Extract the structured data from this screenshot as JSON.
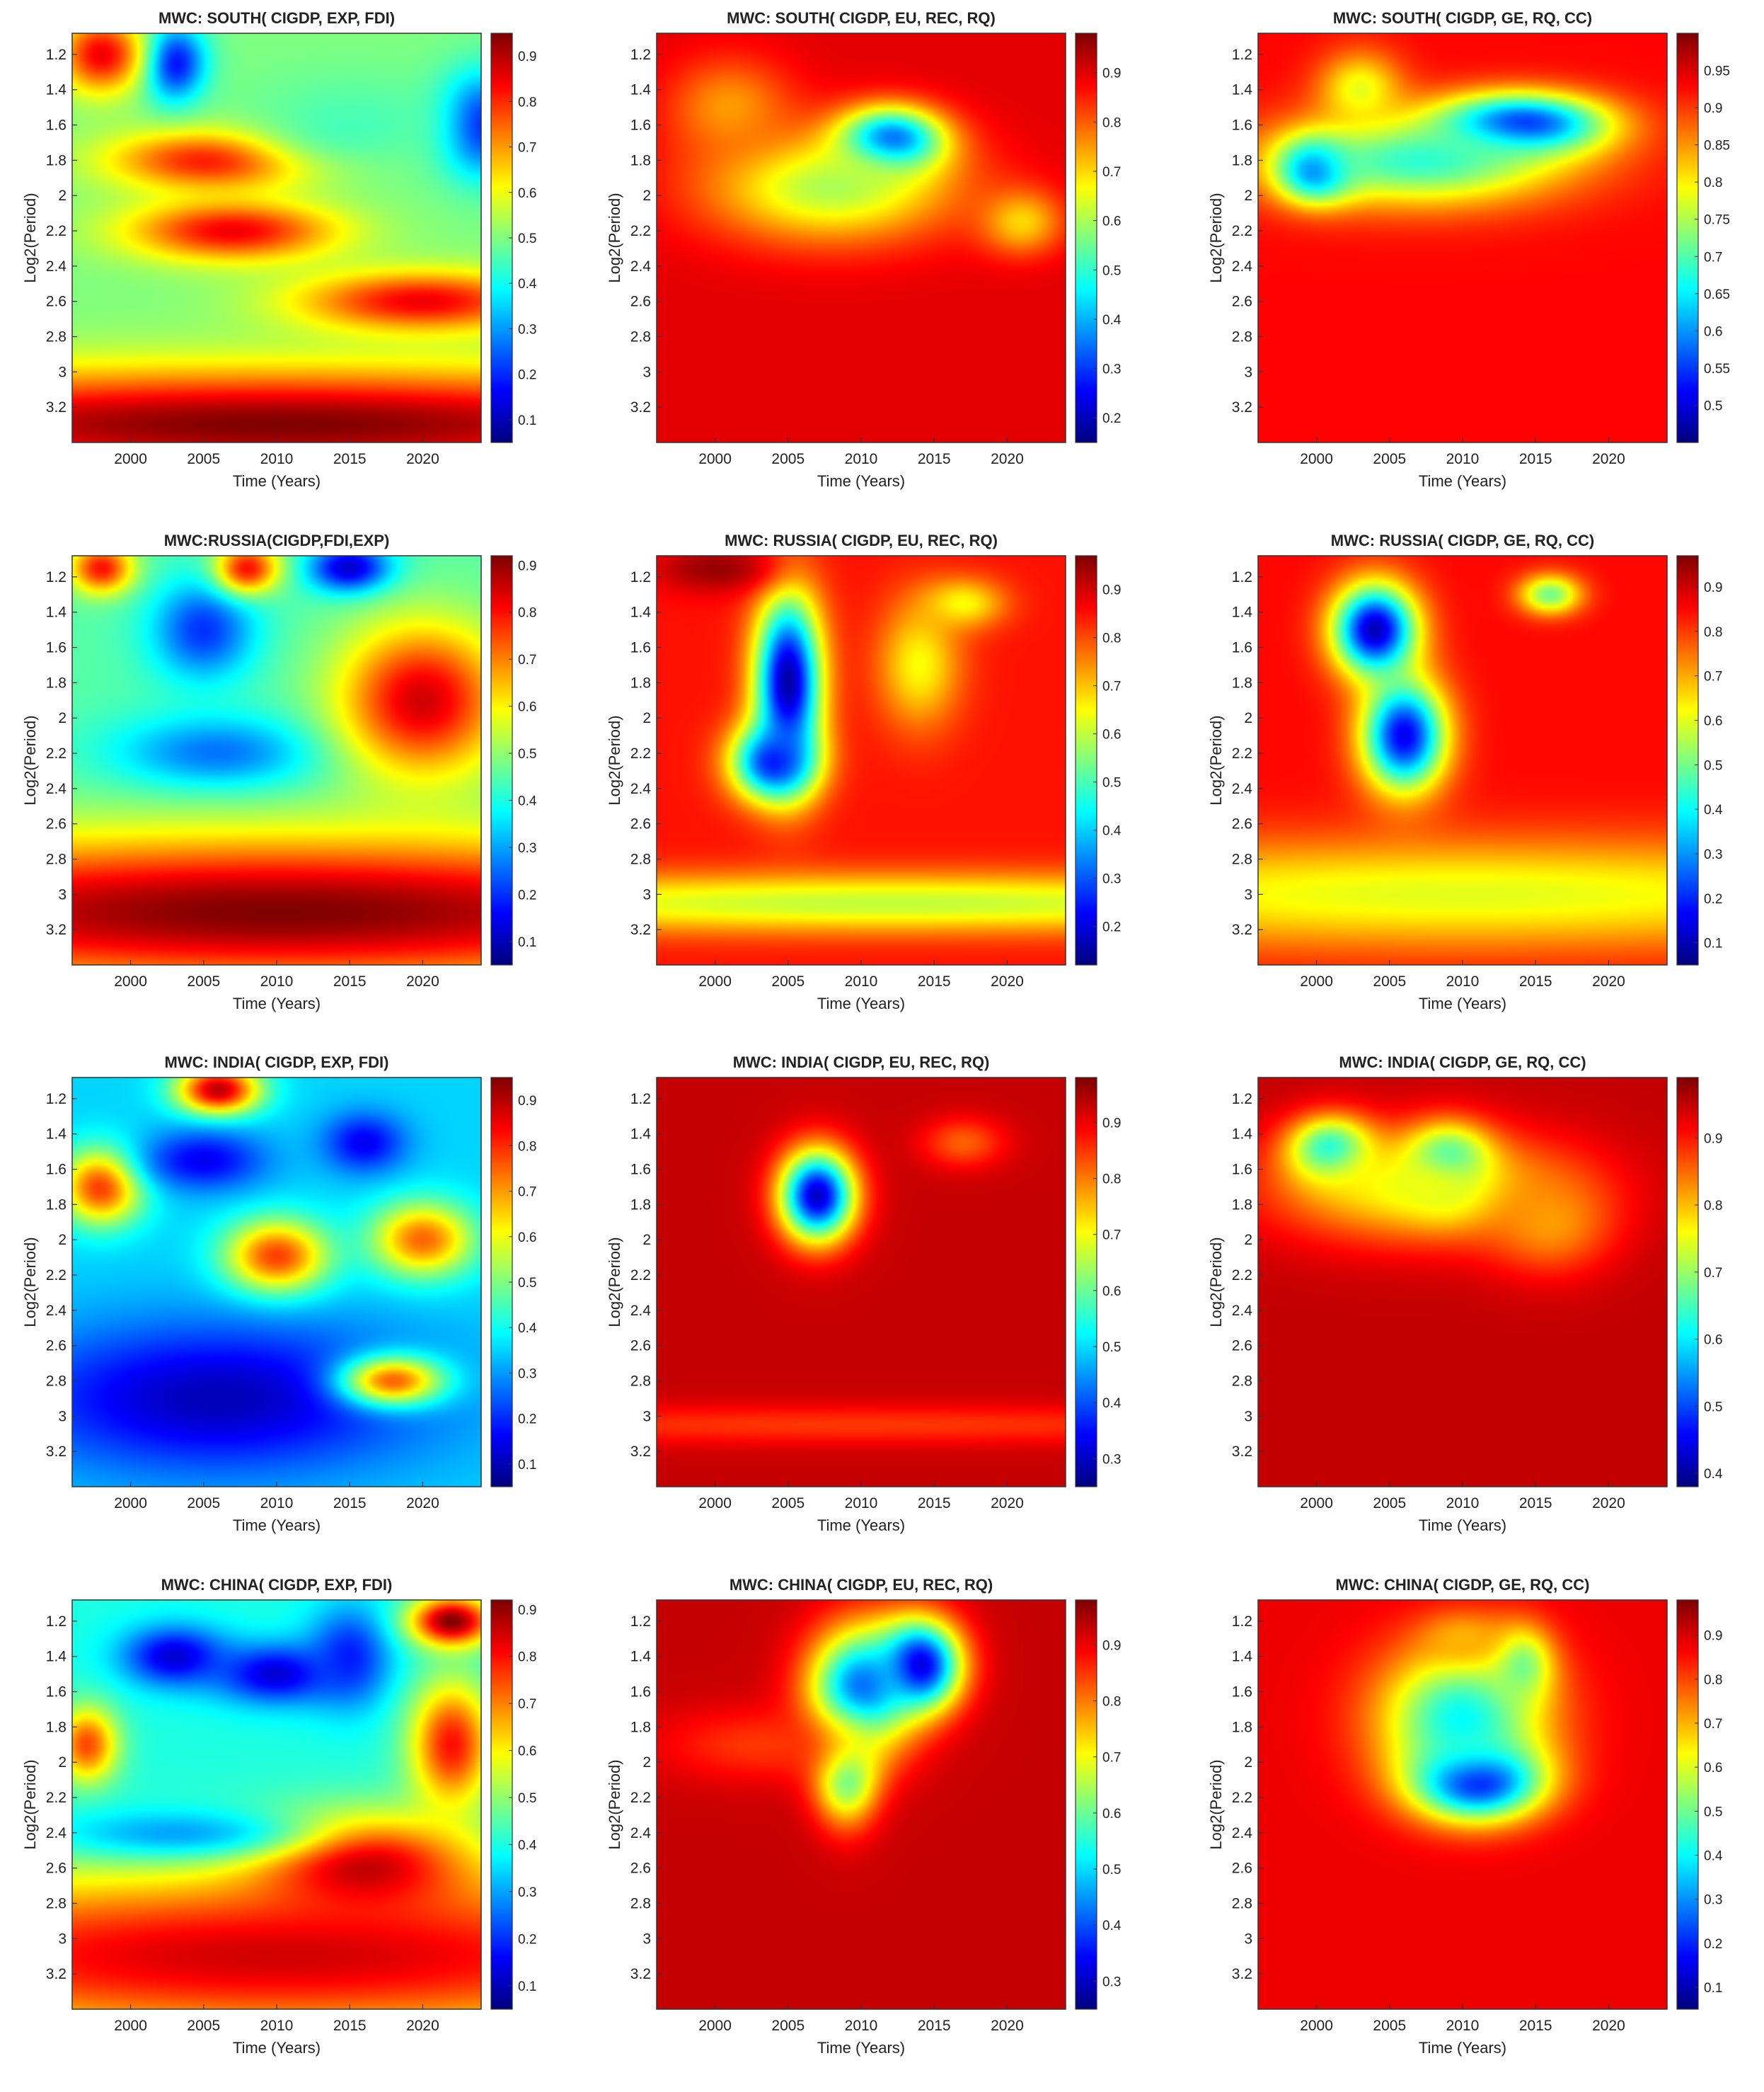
{
  "chart_data": [
    {
      "type": "heatmap",
      "title": "MWC: SOUTH( CIGDP, EXP,  FDI)",
      "xlabel": "Time (Years)",
      "ylabel": "Log2(Period)",
      "xticks": [
        "2000",
        "2005",
        "2010",
        "2015",
        "2020"
      ],
      "yticks": [
        "1.2",
        "1.4",
        "1.6",
        "1.8",
        "2",
        "2.2",
        "2.4",
        "2.6",
        "2.8",
        "3",
        "3.2"
      ],
      "colorbar_ticks": [
        "0.1",
        "0.2",
        "0.3",
        "0.4",
        "0.5",
        "0.6",
        "0.7",
        "0.8",
        "0.9"
      ],
      "xlim": [
        1996,
        2024
      ],
      "ylim": [
        1.08,
        3.4
      ],
      "clim": [
        0.05,
        0.95
      ],
      "base": 0.5,
      "features": [
        {
          "x": 2006,
          "y": 1.8,
          "v": 0.85,
          "sx": 5,
          "sy": 0.12
        },
        {
          "x": 2007,
          "y": 2.2,
          "v": 0.85,
          "sx": 5,
          "sy": 0.12
        },
        {
          "x": 2020,
          "y": 2.6,
          "v": 0.85,
          "sx": 6,
          "sy": 0.12
        },
        {
          "x": 2003,
          "y": 1.25,
          "v": 0.15,
          "sx": 1.5,
          "sy": 0.15
        },
        {
          "x": 2024,
          "y": 1.6,
          "v": 0.15,
          "sx": 2,
          "sy": 0.2
        },
        {
          "x": 2015,
          "y": 1.6,
          "v": 0.45,
          "sx": 5,
          "sy": 0.2
        },
        {
          "x": 2010,
          "y": 3.3,
          "v": 0.95,
          "sx": 30,
          "sy": 0.22
        },
        {
          "x": 1998,
          "y": 1.2,
          "v": 0.85,
          "sx": 2,
          "sy": 0.15
        }
      ]
    },
    {
      "type": "heatmap",
      "title": "MWC:  SOUTH( CIGDP, EU, REC, RQ)",
      "xlabel": "Time (Years)",
      "ylabel": "Log2(Period)",
      "xticks": [
        "2000",
        "2005",
        "2010",
        "2015",
        "2020"
      ],
      "yticks": [
        "1.2",
        "1.4",
        "1.6",
        "1.8",
        "2",
        "2.2",
        "2.4",
        "2.6",
        "2.8",
        "3",
        "3.2"
      ],
      "colorbar_ticks": [
        "0.2",
        "0.3",
        "0.4",
        "0.5",
        "0.6",
        "0.7",
        "0.8",
        "0.9"
      ],
      "xlim": [
        1996,
        2024
      ],
      "ylim": [
        1.08,
        3.4
      ],
      "clim": [
        0.15,
        0.98
      ],
      "base": 0.9,
      "features": [
        {
          "x": 2012,
          "y": 1.7,
          "v": 0.2,
          "sx": 2.5,
          "sy": 0.13
        },
        {
          "x": 2008,
          "y": 1.95,
          "v": 0.6,
          "sx": 6,
          "sy": 0.22
        },
        {
          "x": 2021,
          "y": 2.15,
          "v": 0.7,
          "sx": 2,
          "sy": 0.13
        },
        {
          "x": 2001,
          "y": 1.5,
          "v": 0.75,
          "sx": 3,
          "sy": 0.2
        }
      ]
    },
    {
      "type": "heatmap",
      "title": "MWC:  SOUTH( CIGDP, GE,  RQ, CC)",
      "xlabel": "Time (Years)",
      "ylabel": "Log2(Period)",
      "xticks": [
        "2000",
        "2005",
        "2010",
        "2015",
        "2020"
      ],
      "yticks": [
        "1.2",
        "1.4",
        "1.6",
        "1.8",
        "2",
        "2.2",
        "2.4",
        "2.6",
        "2.8",
        "3",
        "3.2"
      ],
      "colorbar_ticks": [
        "0.5",
        "0.55",
        "0.6",
        "0.65",
        "0.7",
        "0.75",
        "0.8",
        "0.85",
        "0.9",
        "0.95"
      ],
      "xlim": [
        1996,
        2024
      ],
      "ylim": [
        1.08,
        3.4
      ],
      "clim": [
        0.45,
        1.0
      ],
      "base": 0.93,
      "features": [
        {
          "x": 2014,
          "y": 1.6,
          "v": 0.5,
          "sx": 4,
          "sy": 0.12
        },
        {
          "x": 2000,
          "y": 1.85,
          "v": 0.5,
          "sx": 1.8,
          "sy": 0.12
        },
        {
          "x": 2007,
          "y": 1.8,
          "v": 0.68,
          "sx": 7,
          "sy": 0.18
        },
        {
          "x": 2003,
          "y": 1.4,
          "v": 0.78,
          "sx": 2,
          "sy": 0.15
        }
      ]
    },
    {
      "type": "heatmap",
      "title": "MWC:RUSSIA(CIGDP,FDI,EXP)",
      "xlabel": "Time (Years)",
      "ylabel": "Log2(Period)",
      "xticks": [
        "2000",
        "2005",
        "2010",
        "2015",
        "2020"
      ],
      "yticks": [
        "1.2",
        "1.4",
        "1.6",
        "1.8",
        "2",
        "2.2",
        "2.4",
        "2.6",
        "2.8",
        "3",
        "3.2"
      ],
      "colorbar_ticks": [
        "0.1",
        "0.2",
        "0.3",
        "0.4",
        "0.5",
        "0.6",
        "0.7",
        "0.8",
        "0.9"
      ],
      "xlim": [
        1996,
        2024
      ],
      "ylim": [
        1.08,
        3.4
      ],
      "clim": [
        0.05,
        0.92
      ],
      "base": 0.45,
      "features": [
        {
          "x": 2005,
          "y": 1.5,
          "v": 0.2,
          "sx": 2.5,
          "sy": 0.2
        },
        {
          "x": 2006,
          "y": 2.2,
          "v": 0.25,
          "sx": 5,
          "sy": 0.15
        },
        {
          "x": 2015,
          "y": 1.15,
          "v": 0.1,
          "sx": 2,
          "sy": 0.1
        },
        {
          "x": 2020,
          "y": 1.9,
          "v": 0.85,
          "sx": 4,
          "sy": 0.3
        },
        {
          "x": 2010,
          "y": 3.1,
          "v": 0.92,
          "sx": 30,
          "sy": 0.3
        },
        {
          "x": 1998,
          "y": 1.15,
          "v": 0.8,
          "sx": 1.5,
          "sy": 0.1
        },
        {
          "x": 2008,
          "y": 1.15,
          "v": 0.8,
          "sx": 1.5,
          "sy": 0.1
        }
      ]
    },
    {
      "type": "heatmap",
      "title": "MWC:  RUSSIA( CIGDP, EU, REC, RQ)",
      "xlabel": "Time (Years)",
      "ylabel": "Log2(Period)",
      "xticks": [
        "2000",
        "2005",
        "2010",
        "2015",
        "2020"
      ],
      "yticks": [
        "1.2",
        "1.4",
        "1.6",
        "1.8",
        "2",
        "2.2",
        "2.4",
        "2.6",
        "2.8",
        "3",
        "3.2"
      ],
      "colorbar_ticks": [
        "0.2",
        "0.3",
        "0.4",
        "0.5",
        "0.6",
        "0.7",
        "0.8",
        "0.9"
      ],
      "xlim": [
        1996,
        2024
      ],
      "ylim": [
        1.08,
        3.4
      ],
      "clim": [
        0.12,
        0.97
      ],
      "base": 0.85,
      "features": [
        {
          "x": 2005,
          "y": 1.8,
          "v": 0.15,
          "sx": 1.6,
          "sy": 0.35
        },
        {
          "x": 2004,
          "y": 2.25,
          "v": 0.25,
          "sx": 2,
          "sy": 0.15
        },
        {
          "x": 2012,
          "y": 3.05,
          "v": 0.6,
          "sx": 30,
          "sy": 0.12
        },
        {
          "x": 2014,
          "y": 1.7,
          "v": 0.65,
          "sx": 2,
          "sy": 0.25
        },
        {
          "x": 2017,
          "y": 1.35,
          "v": 0.65,
          "sx": 2,
          "sy": 0.1
        },
        {
          "x": 2000,
          "y": 1.15,
          "v": 0.95,
          "sx": 3,
          "sy": 0.1
        }
      ]
    },
    {
      "type": "heatmap",
      "title": "MWC:  RUSSIA( CIGDP, GE,  RQ, CC)",
      "xlabel": "Time (Years)",
      "ylabel": "Log2(Period)",
      "xticks": [
        "2000",
        "2005",
        "2010",
        "2015",
        "2020"
      ],
      "yticks": [
        "1.2",
        "1.4",
        "1.6",
        "1.8",
        "2",
        "2.2",
        "2.4",
        "2.6",
        "2.8",
        "3",
        "3.2"
      ],
      "colorbar_ticks": [
        "0.1",
        "0.2",
        "0.3",
        "0.4",
        "0.5",
        "0.6",
        "0.7",
        "0.8",
        "0.9"
      ],
      "xlim": [
        1996,
        2024
      ],
      "ylim": [
        1.08,
        3.4
      ],
      "clim": [
        0.05,
        0.97
      ],
      "base": 0.85,
      "features": [
        {
          "x": 2004,
          "y": 1.5,
          "v": 0.1,
          "sx": 2,
          "sy": 0.18
        },
        {
          "x": 2006,
          "y": 2.1,
          "v": 0.15,
          "sx": 2,
          "sy": 0.22
        },
        {
          "x": 2016,
          "y": 1.3,
          "v": 0.5,
          "sx": 1.5,
          "sy": 0.08
        },
        {
          "x": 2010,
          "y": 3.0,
          "v": 0.6,
          "sx": 30,
          "sy": 0.22
        }
      ]
    },
    {
      "type": "heatmap",
      "title": "MWC: INDIA( CIGDP, EXP,  FDI)",
      "xlabel": "Time (Years)",
      "ylabel": "Log2(Period)",
      "xticks": [
        "2000",
        "2005",
        "2010",
        "2015",
        "2020"
      ],
      "yticks": [
        "1.2",
        "1.4",
        "1.6",
        "1.8",
        "2",
        "2.2",
        "2.4",
        "2.6",
        "2.8",
        "3",
        "3.2"
      ],
      "colorbar_ticks": [
        "0.1",
        "0.2",
        "0.3",
        "0.4",
        "0.5",
        "0.6",
        "0.7",
        "0.8",
        "0.9"
      ],
      "xlim": [
        1996,
        2024
      ],
      "ylim": [
        1.08,
        3.4
      ],
      "clim": [
        0.05,
        0.95
      ],
      "base": 0.35,
      "features": [
        {
          "x": 2006,
          "y": 1.15,
          "v": 0.9,
          "sx": 2,
          "sy": 0.1
        },
        {
          "x": 1998,
          "y": 1.7,
          "v": 0.8,
          "sx": 2,
          "sy": 0.15
        },
        {
          "x": 2010,
          "y": 2.1,
          "v": 0.8,
          "sx": 2.5,
          "sy": 0.15
        },
        {
          "x": 2020,
          "y": 2.0,
          "v": 0.75,
          "sx": 2.5,
          "sy": 0.15
        },
        {
          "x": 2005,
          "y": 1.55,
          "v": 0.15,
          "sx": 3,
          "sy": 0.12
        },
        {
          "x": 2016,
          "y": 1.45,
          "v": 0.15,
          "sx": 2,
          "sy": 0.12
        },
        {
          "x": 2006,
          "y": 2.9,
          "v": 0.1,
          "sx": 10,
          "sy": 0.3
        },
        {
          "x": 2018,
          "y": 2.8,
          "v": 0.75,
          "sx": 2.5,
          "sy": 0.1
        }
      ]
    },
    {
      "type": "heatmap",
      "title": "MWC:  INDIA( CIGDP, EU, REC, RQ)",
      "xlabel": "Time (Years)",
      "ylabel": "Log2(Period)",
      "xticks": [
        "2000",
        "2005",
        "2010",
        "2015",
        "2020"
      ],
      "yticks": [
        "1.2",
        "1.4",
        "1.6",
        "1.8",
        "2",
        "2.2",
        "2.4",
        "2.6",
        "2.8",
        "3",
        "3.2"
      ],
      "colorbar_ticks": [
        "0.3",
        "0.4",
        "0.5",
        "0.6",
        "0.7",
        "0.8",
        "0.9"
      ],
      "xlim": [
        1996,
        2024
      ],
      "ylim": [
        1.08,
        3.4
      ],
      "clim": [
        0.25,
        0.98
      ],
      "base": 0.93,
      "features": [
        {
          "x": 2007,
          "y": 1.75,
          "v": 0.3,
          "sx": 1.8,
          "sy": 0.18
        },
        {
          "x": 2017,
          "y": 1.45,
          "v": 0.82,
          "sx": 2,
          "sy": 0.1
        },
        {
          "x": 2010,
          "y": 3.05,
          "v": 0.85,
          "sx": 30,
          "sy": 0.08
        }
      ]
    },
    {
      "type": "heatmap",
      "title": "MWC:  INDIA( CIGDP, GE,  RQ, CC)",
      "xlabel": "Time (Years)",
      "ylabel": "Log2(Period)",
      "xticks": [
        "2000",
        "2005",
        "2010",
        "2015",
        "2020"
      ],
      "yticks": [
        "1.2",
        "1.4",
        "1.6",
        "1.8",
        "2",
        "2.2",
        "2.4",
        "2.6",
        "2.8",
        "3",
        "3.2"
      ],
      "colorbar_ticks": [
        "0.4",
        "0.5",
        "0.6",
        "0.7",
        "0.8",
        "0.9"
      ],
      "xlim": [
        1996,
        2024
      ],
      "ylim": [
        1.08,
        3.4
      ],
      "clim": [
        0.38,
        0.99
      ],
      "base": 0.95,
      "features": [
        {
          "x": 2009,
          "y": 1.6,
          "v": 0.42,
          "sx": 2,
          "sy": 0.15
        },
        {
          "x": 2001,
          "y": 1.5,
          "v": 0.55,
          "sx": 2,
          "sy": 0.13
        },
        {
          "x": 2007,
          "y": 1.7,
          "v": 0.75,
          "sx": 7,
          "sy": 0.22
        },
        {
          "x": 2016,
          "y": 1.9,
          "v": 0.82,
          "sx": 3,
          "sy": 0.2
        }
      ]
    },
    {
      "type": "heatmap",
      "title": "MWC: CHINA( CIGDP, EXP,  FDI)",
      "xlabel": "Time (Years)",
      "ylabel": "Log2(Period)",
      "xticks": [
        "2000",
        "2005",
        "2010",
        "2015",
        "2020"
      ],
      "yticks": [
        "1.2",
        "1.4",
        "1.6",
        "1.8",
        "2",
        "2.2",
        "2.4",
        "2.6",
        "2.8",
        "3",
        "3.2"
      ],
      "colorbar_ticks": [
        "0.1",
        "0.2",
        "0.3",
        "0.4",
        "0.5",
        "0.6",
        "0.7",
        "0.8",
        "0.9"
      ],
      "xlim": [
        1996,
        2024
      ],
      "ylim": [
        1.08,
        3.4
      ],
      "clim": [
        0.05,
        0.92
      ],
      "base": 0.4,
      "features": [
        {
          "x": 2003,
          "y": 1.4,
          "v": 0.12,
          "sx": 2.5,
          "sy": 0.12
        },
        {
          "x": 2010,
          "y": 1.5,
          "v": 0.12,
          "sx": 3,
          "sy": 0.12
        },
        {
          "x": 2015,
          "y": 1.4,
          "v": 0.18,
          "sx": 2,
          "sy": 0.2
        },
        {
          "x": 2016,
          "y": 2.6,
          "v": 0.88,
          "sx": 5,
          "sy": 0.2
        },
        {
          "x": 2010,
          "y": 3.1,
          "v": 0.85,
          "sx": 30,
          "sy": 0.35
        },
        {
          "x": 2022,
          "y": 1.9,
          "v": 0.8,
          "sx": 2,
          "sy": 0.25
        },
        {
          "x": 2022,
          "y": 1.2,
          "v": 0.92,
          "sx": 2,
          "sy": 0.1
        },
        {
          "x": 1997,
          "y": 1.9,
          "v": 0.75,
          "sx": 1.5,
          "sy": 0.15
        },
        {
          "x": 2003,
          "y": 2.4,
          "v": 0.3,
          "sx": 6,
          "sy": 0.1
        }
      ]
    },
    {
      "type": "heatmap",
      "title": "MWC:  CHINA( CIGDP, EU, REC, RQ)",
      "xlabel": "Time (Years)",
      "ylabel": "Log2(Period)",
      "xticks": [
        "2000",
        "2005",
        "2010",
        "2015",
        "2020"
      ],
      "yticks": [
        "1.2",
        "1.4",
        "1.6",
        "1.8",
        "2",
        "2.2",
        "2.4",
        "2.6",
        "2.8",
        "3",
        "3.2"
      ],
      "colorbar_ticks": [
        "0.3",
        "0.4",
        "0.5",
        "0.6",
        "0.7",
        "0.8",
        "0.9"
      ],
      "xlim": [
        1996,
        2024
      ],
      "ylim": [
        1.08,
        3.4
      ],
      "clim": [
        0.25,
        0.98
      ],
      "base": 0.93,
      "features": [
        {
          "x": 2014,
          "y": 1.45,
          "v": 0.3,
          "sx": 2,
          "sy": 0.18
        },
        {
          "x": 2010,
          "y": 1.6,
          "v": 0.4,
          "sx": 2.5,
          "sy": 0.25
        },
        {
          "x": 2009,
          "y": 2.05,
          "v": 0.55,
          "sx": 1.5,
          "sy": 0.2
        },
        {
          "x": 2003,
          "y": 1.9,
          "v": 0.85,
          "sx": 5,
          "sy": 0.15
        }
      ]
    },
    {
      "type": "heatmap",
      "title": "MWC:  CHINA( CIGDP, GE,  RQ, CC)",
      "xlabel": "Time (Years)",
      "ylabel": "Log2(Period)",
      "xticks": [
        "2000",
        "2005",
        "2010",
        "2015",
        "2020"
      ],
      "yticks": [
        "1.2",
        "1.4",
        "1.6",
        "1.8",
        "2",
        "2.2",
        "2.4",
        "2.6",
        "2.8",
        "3",
        "3.2"
      ],
      "colorbar_ticks": [
        "0.1",
        "0.2",
        "0.3",
        "0.4",
        "0.5",
        "0.6",
        "0.7",
        "0.8",
        "0.9"
      ],
      "xlim": [
        1996,
        2024
      ],
      "ylim": [
        1.08,
        3.4
      ],
      "clim": [
        0.05,
        0.98
      ],
      "base": 0.88,
      "features": [
        {
          "x": 2011,
          "y": 2.1,
          "v": 0.08,
          "sx": 3,
          "sy": 0.15
        },
        {
          "x": 2010,
          "y": 1.75,
          "v": 0.4,
          "sx": 4,
          "sy": 0.28
        },
        {
          "x": 2014,
          "y": 1.45,
          "v": 0.5,
          "sx": 1.5,
          "sy": 0.15
        },
        {
          "x": 2010,
          "y": 1.3,
          "v": 0.7,
          "sx": 2,
          "sy": 0.1
        }
      ]
    }
  ]
}
